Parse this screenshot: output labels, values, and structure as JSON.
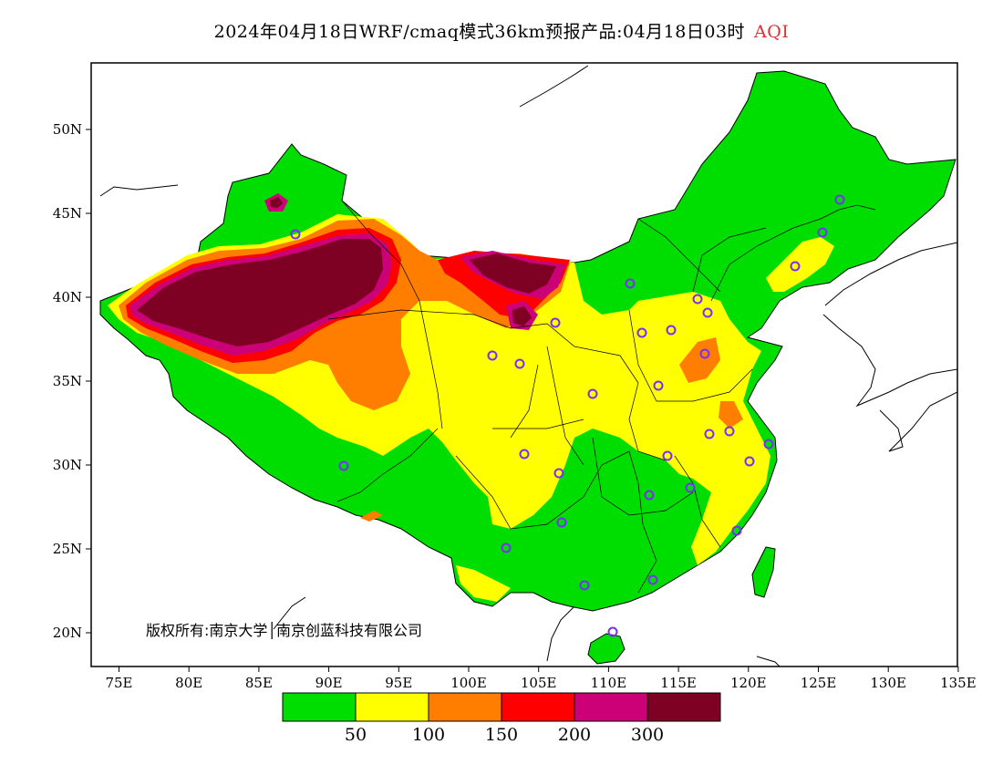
{
  "title": {
    "main": "2024年04月18日WRF/cmaq模式36km预报产品:04月18日03时",
    "variable": "AQI"
  },
  "map": {
    "lon_ticks": [
      "75E",
      "80E",
      "85E",
      "90E",
      "95E",
      "100E",
      "105E",
      "110E",
      "115E",
      "120E",
      "125E",
      "130E",
      "135E"
    ],
    "lat_ticks": [
      "20N",
      "25N",
      "30N",
      "35N",
      "40N",
      "45N",
      "50N"
    ],
    "copyright": "版权所有:南京大学│南京创蓝科技有限公司"
  },
  "legend": {
    "colors": [
      "#00dd00",
      "#ffff00",
      "#ff7e00",
      "#ff0000",
      "#cc0077",
      "#7e0023"
    ],
    "labels": [
      "50",
      "100",
      "150",
      "200",
      "300"
    ],
    "categories": [
      "0-50",
      "50-100",
      "100-150",
      "150-200",
      "200-300",
      ">300"
    ]
  }
}
